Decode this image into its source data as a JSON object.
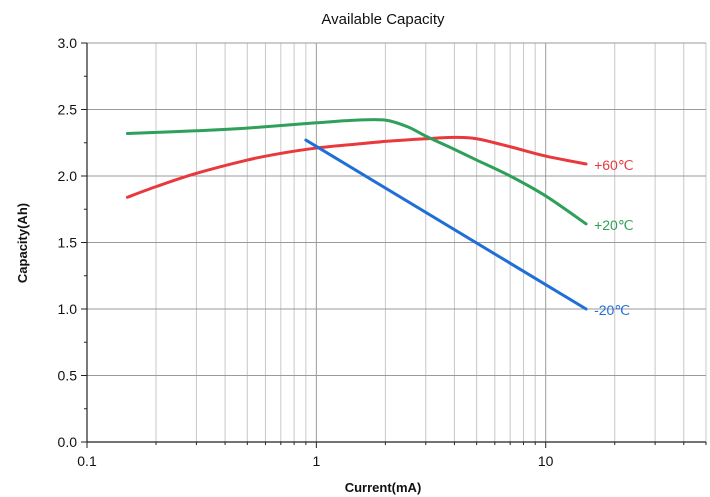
{
  "chart_data": {
    "type": "line",
    "title": "Available Capacity",
    "xlabel": "Current(mA)",
    "ylabel": "Capacity(Ah)",
    "xscale": "log",
    "xlim": [
      0.1,
      50
    ],
    "ylim": [
      0.0,
      3.0
    ],
    "x_ticks": [
      0.1,
      1,
      10
    ],
    "x_tick_labels": [
      "0.1",
      "1",
      "10"
    ],
    "y_ticks": [
      0.0,
      0.5,
      1.0,
      1.5,
      2.0,
      2.5,
      3.0
    ],
    "y_tick_labels": [
      "0.0",
      "0.5",
      "1.0",
      "1.5",
      "2.0",
      "2.5",
      "3.0"
    ],
    "grid": true,
    "series": [
      {
        "name": "+60℃",
        "color": "#e8393c",
        "x": [
          0.15,
          0.2,
          0.3,
          0.5,
          0.7,
          1.0,
          1.5,
          2.0,
          3.0,
          4.0,
          5.0,
          7.0,
          10.0,
          15.0
        ],
        "y": [
          1.84,
          1.92,
          2.02,
          2.12,
          2.17,
          2.21,
          2.24,
          2.26,
          2.28,
          2.29,
          2.28,
          2.22,
          2.15,
          2.09
        ]
      },
      {
        "name": "+20℃",
        "color": "#2ea05a",
        "x": [
          0.15,
          0.3,
          0.5,
          1.0,
          1.5,
          2.0,
          2.5,
          3.0,
          4.0,
          5.0,
          7.0,
          10.0,
          15.0
        ],
        "y": [
          2.32,
          2.34,
          2.36,
          2.4,
          2.42,
          2.42,
          2.37,
          2.3,
          2.2,
          2.12,
          2.0,
          1.85,
          1.64
        ]
      },
      {
        "name": "-20℃",
        "color": "#1f6fd6",
        "x": [
          0.9,
          15.0
        ],
        "y": [
          2.27,
          1.0
        ]
      }
    ]
  }
}
